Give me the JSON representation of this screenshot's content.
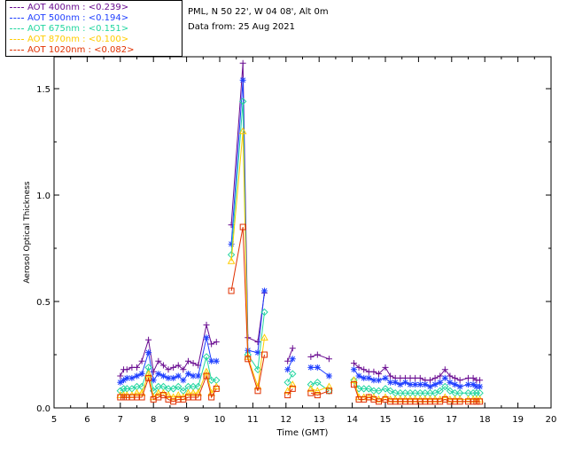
{
  "info": {
    "site": "PML, N 50 22', W 04 08', Alt 0m",
    "date": "Data from: 25 Aug 2021"
  },
  "colors": {
    "aot400": "#6a0d91",
    "aot500": "#1f3fff",
    "aot675": "#22d6a0",
    "aot870": "#ffcc00",
    "aot1020": "#e03000"
  },
  "chart_data": {
    "type": "scatter",
    "xlabel": "Time (GMT)",
    "ylabel": "Aerosol Optical Thickness",
    "xlim": [
      5,
      20
    ],
    "ylim": [
      0,
      1.65
    ],
    "xticks": [
      "5",
      "6",
      "7",
      "8",
      "9",
      "10",
      "11",
      "12",
      "13",
      "14",
      "15",
      "16",
      "17",
      "18",
      "19",
      "20"
    ],
    "yticks": [
      "0.0",
      "0.5",
      "1.0",
      "1.5"
    ],
    "legend": [
      {
        "label": "AOT  400nm : <0.239>",
        "color": "#6a0d91",
        "marker": "plus"
      },
      {
        "label": "AOT  500nm : <0.194>",
        "color": "#1f3fff",
        "marker": "star"
      },
      {
        "label": "AOT  675nm : <0.151>",
        "color": "#22d6a0",
        "marker": "diamond"
      },
      {
        "label": "AOT  870nm : <0.100>",
        "color": "#ffcc00",
        "marker": "triangle"
      },
      {
        "label": "AOT 1020nm : <0.082>",
        "color": "#e03000",
        "marker": "square"
      }
    ],
    "series": [
      {
        "name": "AOT  400nm",
        "color": "#6a0d91",
        "marker": "plus",
        "x": [
          7.0,
          7.1,
          7.2,
          7.35,
          7.5,
          7.65,
          7.85,
          8.0,
          8.15,
          8.3,
          8.45,
          8.6,
          8.75,
          8.9,
          9.05,
          9.2,
          9.35,
          9.6,
          9.75,
          9.9,
          10.35,
          10.7,
          10.85,
          11.15,
          11.35,
          12.05,
          12.2,
          12.75,
          12.95,
          13.3,
          14.05,
          14.2,
          14.35,
          14.5,
          14.65,
          14.8,
          15.0,
          15.15,
          15.3,
          15.45,
          15.6,
          15.75,
          15.9,
          16.05,
          16.2,
          16.35,
          16.5,
          16.65,
          16.8,
          16.95,
          17.1,
          17.25,
          17.5,
          17.65,
          17.75,
          17.85
        ],
        "y": [
          0.15,
          0.18,
          0.18,
          0.19,
          0.19,
          0.22,
          0.32,
          0.17,
          0.22,
          0.2,
          0.18,
          0.19,
          0.2,
          0.18,
          0.22,
          0.21,
          0.2,
          0.39,
          0.3,
          0.31,
          0.86,
          1.62,
          0.33,
          0.31,
          0.54,
          0.22,
          0.28,
          0.24,
          0.25,
          0.23,
          0.21,
          0.19,
          0.18,
          0.17,
          0.17,
          0.16,
          0.19,
          0.15,
          0.14,
          0.14,
          0.14,
          0.14,
          0.14,
          0.14,
          0.13,
          0.13,
          0.14,
          0.15,
          0.18,
          0.15,
          0.14,
          0.13,
          0.14,
          0.14,
          0.13,
          0.13
        ]
      },
      {
        "name": "AOT  500nm",
        "color": "#1f3fff",
        "marker": "star",
        "x": [
          7.0,
          7.1,
          7.2,
          7.35,
          7.5,
          7.65,
          7.85,
          8.0,
          8.15,
          8.3,
          8.45,
          8.6,
          8.75,
          8.9,
          9.05,
          9.2,
          9.35,
          9.6,
          9.75,
          9.9,
          10.35,
          10.7,
          10.85,
          11.15,
          11.35,
          12.05,
          12.2,
          12.75,
          12.95,
          13.3,
          14.05,
          14.2,
          14.35,
          14.5,
          14.65,
          14.8,
          15.0,
          15.15,
          15.3,
          15.45,
          15.6,
          15.75,
          15.9,
          16.05,
          16.2,
          16.35,
          16.5,
          16.65,
          16.8,
          16.95,
          17.1,
          17.25,
          17.5,
          17.65,
          17.75,
          17.85
        ],
        "y": [
          0.12,
          0.13,
          0.14,
          0.14,
          0.15,
          0.16,
          0.26,
          0.13,
          0.16,
          0.15,
          0.14,
          0.14,
          0.15,
          0.13,
          0.16,
          0.15,
          0.15,
          0.33,
          0.22,
          0.22,
          0.77,
          1.54,
          0.27,
          0.26,
          0.55,
          0.18,
          0.23,
          0.19,
          0.19,
          0.15,
          0.18,
          0.15,
          0.14,
          0.14,
          0.13,
          0.13,
          0.14,
          0.12,
          0.12,
          0.11,
          0.12,
          0.11,
          0.11,
          0.11,
          0.11,
          0.1,
          0.11,
          0.12,
          0.14,
          0.12,
          0.11,
          0.1,
          0.11,
          0.11,
          0.1,
          0.1
        ]
      },
      {
        "name": "AOT  675nm",
        "color": "#22d6a0",
        "marker": "diamond",
        "x": [
          7.0,
          7.1,
          7.2,
          7.35,
          7.5,
          7.65,
          7.85,
          8.0,
          8.15,
          8.3,
          8.45,
          8.6,
          8.75,
          8.9,
          9.05,
          9.2,
          9.35,
          9.6,
          9.75,
          9.9,
          10.35,
          10.7,
          10.85,
          11.15,
          11.35,
          12.05,
          12.2,
          12.75,
          12.95,
          13.3,
          14.05,
          14.2,
          14.35,
          14.5,
          14.65,
          14.8,
          15.0,
          15.15,
          15.3,
          15.45,
          15.6,
          15.75,
          15.9,
          16.05,
          16.2,
          16.35,
          16.5,
          16.65,
          16.8,
          16.95,
          17.1,
          17.25,
          17.5,
          17.65,
          17.75,
          17.85
        ],
        "y": [
          0.08,
          0.09,
          0.09,
          0.09,
          0.1,
          0.1,
          0.19,
          0.08,
          0.1,
          0.1,
          0.09,
          0.09,
          0.1,
          0.08,
          0.1,
          0.1,
          0.1,
          0.24,
          0.13,
          0.13,
          0.72,
          1.44,
          0.25,
          0.18,
          0.45,
          0.12,
          0.16,
          0.11,
          0.12,
          0.08,
          0.13,
          0.09,
          0.09,
          0.09,
          0.08,
          0.08,
          0.09,
          0.08,
          0.07,
          0.07,
          0.07,
          0.07,
          0.07,
          0.07,
          0.07,
          0.07,
          0.07,
          0.08,
          0.1,
          0.08,
          0.07,
          0.07,
          0.07,
          0.07,
          0.07,
          0.07
        ]
      },
      {
        "name": "AOT  870nm",
        "color": "#ffcc00",
        "marker": "triangle",
        "x": [
          7.0,
          7.1,
          7.2,
          7.35,
          7.5,
          7.65,
          7.85,
          8.0,
          8.15,
          8.3,
          8.45,
          8.6,
          8.75,
          8.9,
          9.05,
          9.2,
          9.35,
          9.6,
          9.75,
          9.9,
          10.35,
          10.7,
          10.85,
          11.15,
          11.35,
          12.05,
          12.2,
          12.75,
          12.95,
          13.3,
          14.05,
          14.2,
          14.35,
          14.5,
          14.65,
          14.8,
          15.0,
          15.15,
          15.3,
          15.45,
          15.6,
          15.75,
          15.9,
          16.05,
          16.2,
          16.35,
          16.5,
          16.65,
          16.8,
          16.95,
          17.1,
          17.25,
          17.5,
          17.65,
          17.75,
          17.85
        ],
        "y": [
          0.06,
          0.06,
          0.06,
          0.06,
          0.07,
          0.07,
          0.16,
          0.05,
          0.07,
          0.07,
          0.06,
          0.05,
          0.06,
          0.05,
          0.07,
          0.07,
          0.07,
          0.17,
          0.07,
          0.1,
          0.69,
          1.3,
          0.24,
          0.1,
          0.33,
          0.08,
          0.11,
          0.09,
          0.08,
          0.1,
          0.13,
          0.05,
          0.05,
          0.05,
          0.05,
          0.04,
          0.05,
          0.04,
          0.04,
          0.04,
          0.04,
          0.04,
          0.04,
          0.04,
          0.04,
          0.04,
          0.04,
          0.04,
          0.05,
          0.04,
          0.04,
          0.04,
          0.04,
          0.04,
          0.04,
          0.04
        ]
      },
      {
        "name": "AOT 1020nm",
        "color": "#e03000",
        "marker": "square",
        "x": [
          7.0,
          7.1,
          7.2,
          7.35,
          7.5,
          7.65,
          7.85,
          8.0,
          8.15,
          8.3,
          8.45,
          8.6,
          8.75,
          8.9,
          9.05,
          9.2,
          9.35,
          9.6,
          9.75,
          9.9,
          10.35,
          10.7,
          10.85,
          11.15,
          11.35,
          12.05,
          12.2,
          12.75,
          12.95,
          13.3,
          14.05,
          14.2,
          14.35,
          14.5,
          14.65,
          14.8,
          15.0,
          15.15,
          15.3,
          15.45,
          15.6,
          15.75,
          15.9,
          16.05,
          16.2,
          16.35,
          16.5,
          16.65,
          16.8,
          16.95,
          17.1,
          17.25,
          17.5,
          17.65,
          17.75,
          17.85
        ],
        "y": [
          0.05,
          0.05,
          0.05,
          0.05,
          0.05,
          0.05,
          0.14,
          0.04,
          0.05,
          0.06,
          0.04,
          0.03,
          0.04,
          0.04,
          0.05,
          0.05,
          0.05,
          0.15,
          0.05,
          0.09,
          0.55,
          0.85,
          0.23,
          0.08,
          0.25,
          0.06,
          0.09,
          0.07,
          0.06,
          0.08,
          0.11,
          0.04,
          0.04,
          0.05,
          0.04,
          0.03,
          0.04,
          0.03,
          0.03,
          0.03,
          0.03,
          0.03,
          0.03,
          0.03,
          0.03,
          0.03,
          0.03,
          0.03,
          0.04,
          0.03,
          0.03,
          0.03,
          0.03,
          0.03,
          0.03,
          0.03
        ]
      }
    ]
  }
}
